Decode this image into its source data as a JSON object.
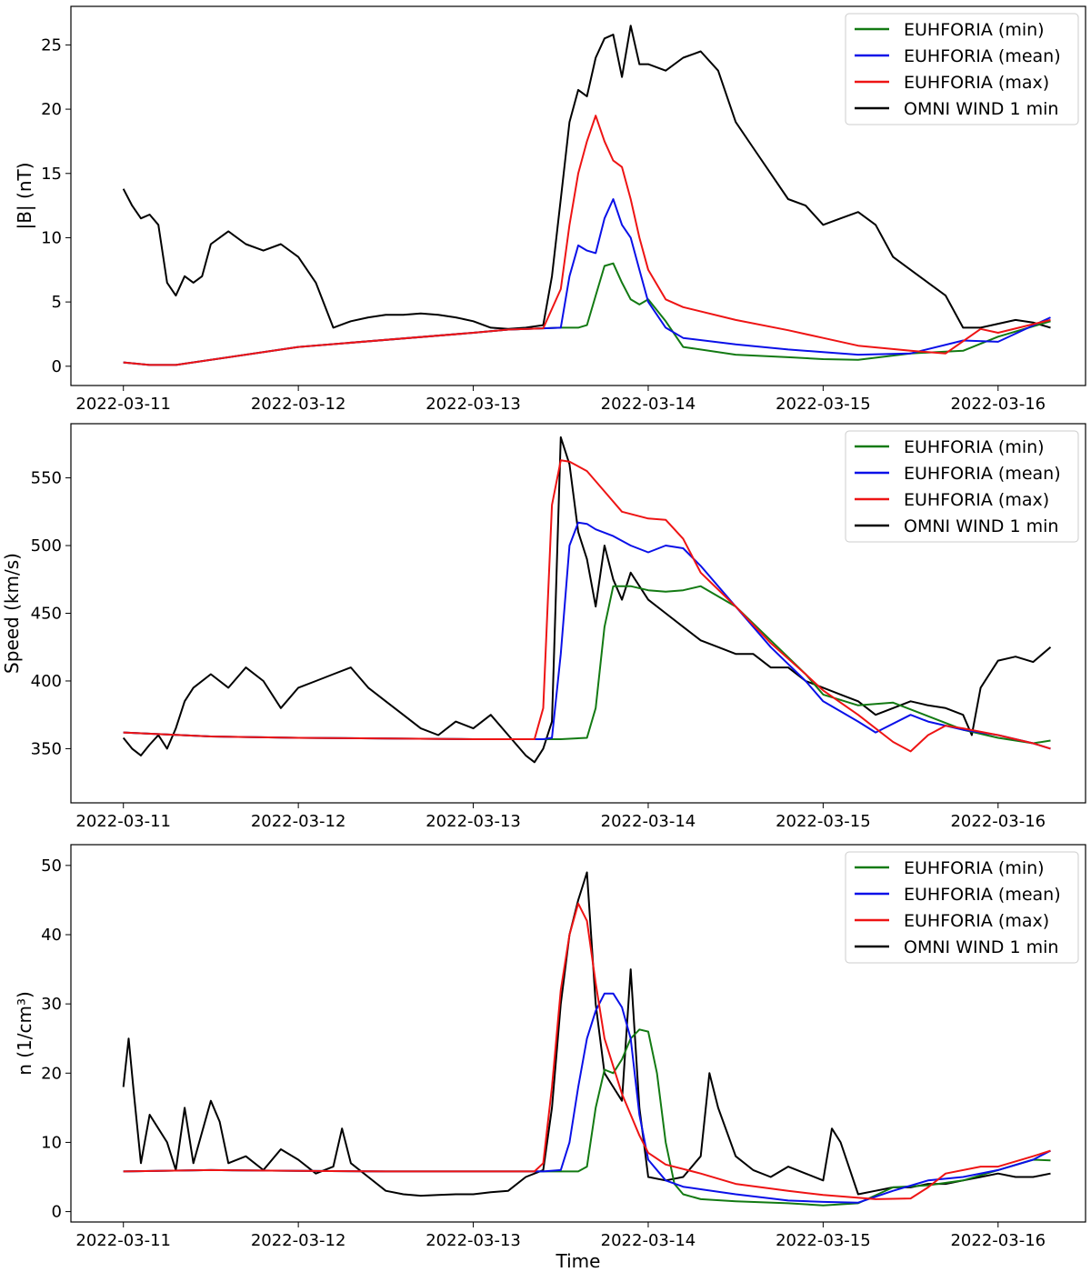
{
  "figure": {
    "xlabel": "Time"
  },
  "colors": {
    "min": "#137a13",
    "mean": "#0a10e8",
    "max": "#ee1414",
    "omni": "#000000"
  },
  "chart_data": [
    {
      "type": "line",
      "title": "",
      "xlabel": "",
      "ylabel": "|B| (nT)",
      "x_ticks": [
        "2022-03-11",
        "2022-03-12",
        "2022-03-13",
        "2022-03-14",
        "2022-03-15",
        "2022-03-16"
      ],
      "x_range_days": [
        -0.3,
        5.5
      ],
      "ylim": [
        -1.5,
        28
      ],
      "y_ticks": [
        0,
        5,
        10,
        15,
        20,
        25
      ],
      "grid": false,
      "legend": "top-right",
      "series": [
        {
          "name": "EUHFORIA (min)",
          "color_key": "min",
          "x": [
            0,
            0.15,
            0.3,
            1,
            2,
            2.2,
            2.4,
            2.5,
            2.6,
            2.65,
            2.7,
            2.75,
            2.8,
            2.85,
            2.9,
            2.95,
            3,
            3.1,
            3.2,
            3.5,
            3.8,
            4.0,
            4.2,
            4.5,
            4.8,
            5.0,
            5.3
          ],
          "y": [
            0.3,
            0.1,
            0.1,
            1.5,
            2.6,
            2.85,
            2.95,
            3.0,
            3.0,
            3.2,
            5.5,
            7.8,
            8.0,
            6.5,
            5.2,
            4.8,
            5.2,
            3.5,
            1.5,
            0.9,
            0.7,
            0.55,
            0.5,
            1.0,
            1.2,
            2.3,
            3.5
          ]
        },
        {
          "name": "EUHFORIA (mean)",
          "color_key": "mean",
          "x": [
            0,
            0.15,
            0.3,
            1,
            2,
            2.2,
            2.4,
            2.5,
            2.55,
            2.6,
            2.65,
            2.7,
            2.75,
            2.8,
            2.85,
            2.9,
            2.95,
            3,
            3.1,
            3.2,
            3.5,
            3.8,
            4.0,
            4.2,
            4.5,
            4.8,
            5.0,
            5.3
          ],
          "y": [
            0.3,
            0.1,
            0.1,
            1.5,
            2.6,
            2.85,
            2.95,
            3.0,
            7.0,
            9.4,
            9.0,
            8.8,
            11.5,
            13.0,
            11.0,
            10.0,
            7.5,
            5.0,
            3.0,
            2.2,
            1.7,
            1.3,
            1.1,
            0.9,
            1.0,
            2.0,
            1.9,
            3.8
          ]
        },
        {
          "name": "EUHFORIA (max)",
          "color_key": "max",
          "x": [
            0,
            0.15,
            0.3,
            1,
            2,
            2.2,
            2.4,
            2.5,
            2.55,
            2.6,
            2.65,
            2.7,
            2.75,
            2.8,
            2.85,
            2.9,
            2.95,
            3,
            3.1,
            3.2,
            3.5,
            3.8,
            4.0,
            4.2,
            4.5,
            4.7,
            4.9,
            5.0,
            5.3
          ],
          "y": [
            0.3,
            0.1,
            0.1,
            1.5,
            2.6,
            2.85,
            2.95,
            6.0,
            11.0,
            15.0,
            17.5,
            19.5,
            17.5,
            16.0,
            15.5,
            13.0,
            10.0,
            7.5,
            5.2,
            4.6,
            3.6,
            2.8,
            2.2,
            1.6,
            1.2,
            1.0,
            2.9,
            2.6,
            3.6
          ]
        },
        {
          "name": "OMNI WIND 1 min",
          "color_key": "omni",
          "x": [
            0,
            0.05,
            0.1,
            0.15,
            0.2,
            0.25,
            0.3,
            0.35,
            0.4,
            0.45,
            0.5,
            0.55,
            0.6,
            0.7,
            0.8,
            0.9,
            1.0,
            1.1,
            1.2,
            1.3,
            1.4,
            1.5,
            1.6,
            1.7,
            1.8,
            1.9,
            2.0,
            2.1,
            2.2,
            2.3,
            2.4,
            2.45,
            2.5,
            2.55,
            2.6,
            2.65,
            2.7,
            2.75,
            2.8,
            2.85,
            2.9,
            2.95,
            3.0,
            3.1,
            3.2,
            3.3,
            3.4,
            3.5,
            3.6,
            3.7,
            3.8,
            3.9,
            4.0,
            4.1,
            4.2,
            4.3,
            4.4,
            4.5,
            4.6,
            4.7,
            4.8,
            4.9,
            5.0,
            5.1,
            5.2,
            5.3
          ],
          "y": [
            13.8,
            12.5,
            11.5,
            11.8,
            11.0,
            6.5,
            5.5,
            7.0,
            6.5,
            7.0,
            9.5,
            10.0,
            10.5,
            9.5,
            9.0,
            9.5,
            8.5,
            6.5,
            3.0,
            3.5,
            3.8,
            4.0,
            4.0,
            4.1,
            4.0,
            3.8,
            3.5,
            3.0,
            2.9,
            3.0,
            3.2,
            7.0,
            13.0,
            19.0,
            21.5,
            21.0,
            24.0,
            25.5,
            25.8,
            22.5,
            26.5,
            23.5,
            23.5,
            23.0,
            24.0,
            24.5,
            23.0,
            19.0,
            17.0,
            15.0,
            13.0,
            12.5,
            11.0,
            11.5,
            12.0,
            11.0,
            8.5,
            7.5,
            6.5,
            5.5,
            3.0,
            3.0,
            3.3,
            3.6,
            3.4,
            3.0
          ]
        }
      ]
    },
    {
      "type": "line",
      "title": "",
      "xlabel": "",
      "ylabel": "Speed (km/s)",
      "x_ticks": [
        "2022-03-11",
        "2022-03-12",
        "2022-03-13",
        "2022-03-14",
        "2022-03-15",
        "2022-03-16"
      ],
      "x_range_days": [
        -0.3,
        5.5
      ],
      "ylim": [
        310,
        590
      ],
      "y_ticks": [
        350,
        400,
        450,
        500,
        550
      ],
      "grid": false,
      "legend": "top-right",
      "series": [
        {
          "name": "EUHFORIA (min)",
          "color_key": "min",
          "x": [
            0,
            0.5,
            1,
            2,
            2.5,
            2.65,
            2.7,
            2.75,
            2.8,
            2.9,
            3.0,
            3.1,
            3.2,
            3.3,
            3.5,
            3.7,
            3.9,
            4.0,
            4.2,
            4.4,
            4.6,
            4.8,
            5.0,
            5.2,
            5.3
          ],
          "y": [
            362,
            359,
            358,
            357,
            357,
            358,
            380,
            440,
            470,
            470,
            467,
            466,
            467,
            470,
            455,
            430,
            405,
            390,
            382,
            384,
            374,
            364,
            358,
            354,
            356
          ]
        },
        {
          "name": "EUHFORIA (mean)",
          "color_key": "mean",
          "x": [
            0,
            0.5,
            1,
            2,
            2.4,
            2.45,
            2.5,
            2.55,
            2.6,
            2.65,
            2.7,
            2.8,
            2.9,
            3.0,
            3.1,
            3.2,
            3.3,
            3.5,
            3.7,
            3.9,
            4.0,
            4.2,
            4.3,
            4.5,
            4.6,
            4.8,
            5.0,
            5.2,
            5.3
          ],
          "y": [
            362,
            359,
            358,
            357,
            357,
            358,
            420,
            500,
            517,
            516,
            512,
            507,
            500,
            495,
            500,
            498,
            485,
            455,
            425,
            400,
            385,
            370,
            362,
            375,
            370,
            364,
            360,
            354,
            350
          ]
        },
        {
          "name": "EUHFORIA (max)",
          "color_key": "max",
          "x": [
            0,
            0.5,
            1,
            2,
            2.35,
            2.4,
            2.45,
            2.5,
            2.55,
            2.65,
            2.75,
            2.85,
            3.0,
            3.1,
            3.2,
            3.3,
            3.5,
            3.7,
            3.9,
            4.0,
            4.2,
            4.4,
            4.5,
            4.6,
            4.7,
            4.8,
            5.0,
            5.2,
            5.3
          ],
          "y": [
            362,
            359,
            358,
            357,
            357,
            380,
            530,
            563,
            562,
            555,
            540,
            525,
            520,
            519,
            505,
            480,
            455,
            428,
            405,
            393,
            375,
            355,
            348,
            360,
            367,
            365,
            360,
            354,
            350
          ]
        },
        {
          "name": "OMNI WIND 1 min",
          "color_key": "omni",
          "x": [
            0,
            0.05,
            0.1,
            0.15,
            0.2,
            0.25,
            0.3,
            0.35,
            0.4,
            0.5,
            0.6,
            0.7,
            0.8,
            0.9,
            1.0,
            1.1,
            1.2,
            1.3,
            1.4,
            1.5,
            1.6,
            1.7,
            1.8,
            1.9,
            2.0,
            2.1,
            2.2,
            2.3,
            2.35,
            2.4,
            2.45,
            2.5,
            2.55,
            2.6,
            2.65,
            2.7,
            2.75,
            2.8,
            2.85,
            2.9,
            3.0,
            3.1,
            3.2,
            3.3,
            3.4,
            3.5,
            3.6,
            3.7,
            3.8,
            3.9,
            4.0,
            4.1,
            4.2,
            4.3,
            4.4,
            4.5,
            4.6,
            4.7,
            4.8,
            4.85,
            4.9,
            5.0,
            5.1,
            5.2,
            5.3
          ],
          "y": [
            358,
            350,
            345,
            353,
            360,
            350,
            365,
            385,
            395,
            405,
            395,
            410,
            400,
            380,
            395,
            400,
            405,
            410,
            395,
            385,
            375,
            365,
            360,
            370,
            365,
            375,
            360,
            345,
            340,
            350,
            370,
            580,
            560,
            510,
            490,
            455,
            500,
            475,
            460,
            480,
            460,
            450,
            440,
            430,
            425,
            420,
            420,
            410,
            410,
            400,
            395,
            390,
            385,
            375,
            380,
            385,
            382,
            380,
            375,
            360,
            395,
            415,
            418,
            414,
            425
          ]
        }
      ]
    },
    {
      "type": "line",
      "title": "",
      "xlabel": "Time",
      "ylabel": "n (1/cm³)",
      "x_ticks": [
        "2022-03-11",
        "2022-03-12",
        "2022-03-13",
        "2022-03-14",
        "2022-03-15",
        "2022-03-16"
      ],
      "x_range_days": [
        -0.3,
        5.5
      ],
      "ylim": [
        -1.5,
        53
      ],
      "y_ticks": [
        0,
        10,
        20,
        30,
        40,
        50
      ],
      "grid": false,
      "legend": "top-right",
      "series": [
        {
          "name": "EUHFORIA (min)",
          "color_key": "min",
          "x": [
            0,
            0.5,
            1,
            1.5,
            2,
            2.4,
            2.6,
            2.65,
            2.7,
            2.75,
            2.8,
            2.85,
            2.9,
            2.95,
            3.0,
            3.05,
            3.1,
            3.15,
            3.2,
            3.3,
            3.5,
            3.8,
            4.0,
            4.2,
            4.4,
            4.6,
            4.8,
            5.0,
            5.2,
            5.3
          ],
          "y": [
            5.8,
            6.0,
            5.9,
            5.8,
            5.8,
            5.8,
            5.8,
            6.5,
            15.0,
            20.5,
            20.0,
            22.0,
            25.0,
            26.3,
            26.0,
            20.0,
            10.0,
            4.0,
            2.5,
            1.8,
            1.5,
            1.2,
            0.9,
            1.2,
            3.5,
            3.8,
            4.5,
            6.0,
            7.5,
            7.4
          ]
        },
        {
          "name": "EUHFORIA (mean)",
          "color_key": "mean",
          "x": [
            0,
            0.5,
            1,
            1.5,
            2,
            2.4,
            2.5,
            2.55,
            2.6,
            2.65,
            2.7,
            2.75,
            2.8,
            2.85,
            2.9,
            2.95,
            3.0,
            3.1,
            3.2,
            3.5,
            3.8,
            4.0,
            4.2,
            4.4,
            4.6,
            4.8,
            5.0,
            5.2,
            5.3
          ],
          "y": [
            5.8,
            6.0,
            5.9,
            5.8,
            5.8,
            5.8,
            6.0,
            10.0,
            18.0,
            25.0,
            29.0,
            31.5,
            31.5,
            29.5,
            25.0,
            14.0,
            7.5,
            4.5,
            3.6,
            2.5,
            1.6,
            1.4,
            1.3,
            3.0,
            4.5,
            5.0,
            6.0,
            7.5,
            8.8
          ]
        },
        {
          "name": "EUHFORIA (max)",
          "color_key": "max",
          "x": [
            0,
            0.5,
            1,
            1.5,
            2,
            2.35,
            2.4,
            2.45,
            2.5,
            2.55,
            2.6,
            2.65,
            2.7,
            2.75,
            2.8,
            2.85,
            2.9,
            2.95,
            3.0,
            3.1,
            3.3,
            3.5,
            3.8,
            4.0,
            4.3,
            4.5,
            4.6,
            4.7,
            4.9,
            5.0,
            5.2,
            5.3
          ],
          "y": [
            5.8,
            6.0,
            5.9,
            5.8,
            5.8,
            5.8,
            7.0,
            18.0,
            32.0,
            40.0,
            44.5,
            42.0,
            33.0,
            25.0,
            21.0,
            17.0,
            14.0,
            11.0,
            8.5,
            6.8,
            5.5,
            4.0,
            3.0,
            2.4,
            1.8,
            1.9,
            3.5,
            5.5,
            6.5,
            6.5,
            8.0,
            8.8
          ]
        },
        {
          "name": "OMNI WIND 1 min",
          "color_key": "omni",
          "x": [
            0,
            0.03,
            0.06,
            0.1,
            0.15,
            0.2,
            0.25,
            0.3,
            0.35,
            0.4,
            0.5,
            0.55,
            0.6,
            0.7,
            0.8,
            0.9,
            1.0,
            1.1,
            1.2,
            1.25,
            1.3,
            1.4,
            1.5,
            1.6,
            1.7,
            1.8,
            1.9,
            2.0,
            2.1,
            2.2,
            2.3,
            2.4,
            2.45,
            2.5,
            2.55,
            2.6,
            2.65,
            2.7,
            2.75,
            2.8,
            2.85,
            2.9,
            2.95,
            3.0,
            3.1,
            3.2,
            3.3,
            3.35,
            3.4,
            3.5,
            3.6,
            3.7,
            3.8,
            3.9,
            4.0,
            4.05,
            4.1,
            4.2,
            4.3,
            4.4,
            4.5,
            4.6,
            4.7,
            4.8,
            4.9,
            5.0,
            5.1,
            5.2,
            5.3
          ],
          "y": [
            18.0,
            25.0,
            17.0,
            7.0,
            14.0,
            12.0,
            10.0,
            6.0,
            15.0,
            7.0,
            16.0,
            13.0,
            7.0,
            8.0,
            6.0,
            9.0,
            7.5,
            5.5,
            6.5,
            12.0,
            7.0,
            5.0,
            3.0,
            2.5,
            2.3,
            2.4,
            2.5,
            2.5,
            2.8,
            3.0,
            5.0,
            6.0,
            15.0,
            30.0,
            40.0,
            45.0,
            49.0,
            30.0,
            20.0,
            18.0,
            16.0,
            35.0,
            15.0,
            5.0,
            4.5,
            5.0,
            8.0,
            20.0,
            15.0,
            8.0,
            6.0,
            5.0,
            6.5,
            5.5,
            4.5,
            12.0,
            10.0,
            2.5,
            3.0,
            3.5,
            3.5,
            4.0,
            4.0,
            4.5,
            5.0,
            5.5,
            5.0,
            5.0,
            5.5
          ]
        }
      ]
    }
  ]
}
